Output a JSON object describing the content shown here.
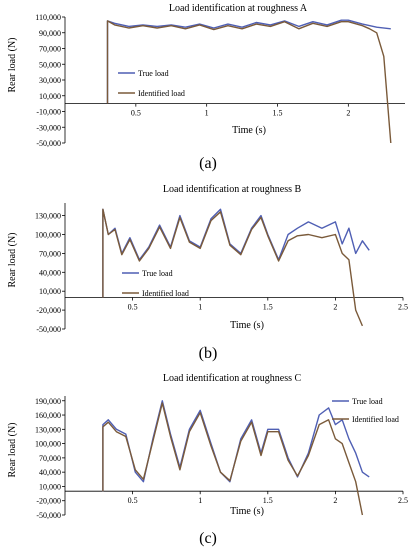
{
  "chart_data": [
    {
      "type": "line",
      "title": "Load identification at roughness A",
      "xlabel": "Time (s)",
      "ylabel": "Rear load (N)",
      "panel_label": "(a)",
      "xlim": [
        0,
        2.4
      ],
      "ylim": [
        -50000,
        110000
      ],
      "y_at_x_axis": 0,
      "xticks": [
        0.5,
        1,
        1.5,
        2
      ],
      "xtick_labels": [
        "0.5",
        "1",
        "1.5",
        "2"
      ],
      "yticks": [
        110000,
        90000,
        70000,
        50000,
        30000,
        10000,
        -10000,
        -30000,
        -50000
      ],
      "ytick_labels": [
        "110,000",
        "90,000",
        "70,000",
        "50,000",
        "30,000",
        "10,000",
        "-10,000",
        "-30,000",
        "-50,000"
      ],
      "grid": false,
      "legend_position": "left-center",
      "series": [
        {
          "name": "True load",
          "color": "#4f5fb4",
          "x": [
            0.3,
            0.3,
            0.35,
            0.45,
            0.55,
            0.65,
            0.75,
            0.85,
            0.95,
            1.05,
            1.15,
            1.25,
            1.35,
            1.45,
            1.55,
            1.65,
            1.75,
            1.85,
            1.95,
            2.0,
            2.1,
            2.2,
            2.3
          ],
          "y": [
            0,
            105000,
            102000,
            98000,
            100000,
            98000,
            100000,
            97000,
            101000,
            96000,
            101000,
            97000,
            103000,
            100000,
            105000,
            98000,
            104000,
            100000,
            106000,
            106000,
            101000,
            97000,
            95000
          ]
        },
        {
          "name": "Identified load",
          "color": "#7a5a3a",
          "x": [
            0.3,
            0.3,
            0.35,
            0.45,
            0.55,
            0.65,
            0.75,
            0.85,
            0.95,
            1.05,
            1.15,
            1.25,
            1.35,
            1.45,
            1.55,
            1.65,
            1.75,
            1.85,
            1.95,
            2.0,
            2.1,
            2.15,
            2.2,
            2.25,
            2.3
          ],
          "y": [
            0,
            105000,
            100000,
            96000,
            99000,
            96000,
            99000,
            95000,
            100000,
            94000,
            99000,
            95000,
            101000,
            98000,
            104000,
            95000,
            102000,
            98000,
            104000,
            104000,
            99000,
            95000,
            90000,
            60000,
            -50000
          ]
        }
      ]
    },
    {
      "type": "line",
      "title": "Load identification at roughness B",
      "xlabel": "Time (s)",
      "ylabel": "Rear load (N)",
      "panel_label": "(b)",
      "xlim": [
        0,
        2.5
      ],
      "ylim": [
        -50000,
        150000
      ],
      "y_at_x_axis": 0,
      "xticks": [
        0.5,
        1,
        1.5,
        2,
        2.5
      ],
      "xtick_labels": [
        "0.5",
        "1",
        "1.5",
        "2",
        "2.5"
      ],
      "yticks": [
        130000,
        100000,
        70000,
        40000,
        10000,
        -20000,
        -50000
      ],
      "ytick_labels": [
        "130,000",
        "100,000",
        "70,000",
        "40,000",
        "10,000",
        "-20,000",
        "-50,000"
      ],
      "grid": false,
      "legend_position": "left-bottom",
      "series": [
        {
          "name": "True load",
          "color": "#4f5fb4",
          "x": [
            0.28,
            0.28,
            0.32,
            0.37,
            0.42,
            0.48,
            0.55,
            0.62,
            0.7,
            0.78,
            0.85,
            0.92,
            1.0,
            1.08,
            1.15,
            1.22,
            1.3,
            1.38,
            1.45,
            1.5,
            1.58,
            1.65,
            1.72,
            1.8,
            1.9,
            2.0,
            2.05,
            2.1,
            2.15,
            2.2,
            2.25
          ],
          "y": [
            0,
            140000,
            100000,
            110000,
            70000,
            95000,
            60000,
            80000,
            115000,
            80000,
            130000,
            90000,
            80000,
            125000,
            140000,
            85000,
            70000,
            110000,
            130000,
            100000,
            60000,
            100000,
            110000,
            120000,
            110000,
            120000,
            85000,
            110000,
            70000,
            90000,
            75000
          ]
        },
        {
          "name": "Identified load",
          "color": "#7a5a3a",
          "x": [
            0.28,
            0.28,
            0.32,
            0.37,
            0.42,
            0.48,
            0.55,
            0.62,
            0.7,
            0.78,
            0.85,
            0.92,
            1.0,
            1.08,
            1.15,
            1.22,
            1.3,
            1.38,
            1.45,
            1.5,
            1.58,
            1.65,
            1.72,
            1.8,
            1.9,
            2.0,
            2.05,
            2.1,
            2.15,
            2.2
          ],
          "y": [
            0,
            140000,
            100000,
            108000,
            68000,
            92000,
            58000,
            78000,
            112000,
            78000,
            127000,
            88000,
            78000,
            122000,
            136000,
            83000,
            68000,
            108000,
            127000,
            98000,
            58000,
            90000,
            98000,
            100000,
            95000,
            100000,
            70000,
            60000,
            -20000,
            -45000
          ]
        }
      ]
    },
    {
      "type": "line",
      "title": "Load identification at roughness C",
      "xlabel": "Time (s)",
      "ylabel": "Rear load (N)",
      "panel_label": "(c)",
      "xlim": [
        0,
        2.5
      ],
      "ylim": [
        -50000,
        200000
      ],
      "y_at_x_axis": 0,
      "xticks": [
        0.5,
        1,
        1.5,
        2,
        2.5
      ],
      "xtick_labels": [
        "0.5",
        "1",
        "1.5",
        "2",
        "2.5"
      ],
      "yticks": [
        190000,
        160000,
        130000,
        100000,
        70000,
        40000,
        10000,
        -20000,
        -50000
      ],
      "ytick_labels": [
        "190,000",
        "160,000",
        "130,000",
        "100,000",
        "70,000",
        "40,000",
        "10,000",
        "-20,000",
        "-50,000"
      ],
      "grid": false,
      "legend_position": "top-right",
      "series": [
        {
          "name": "True load",
          "color": "#4f5fb4",
          "x": [
            0.28,
            0.28,
            0.32,
            0.38,
            0.45,
            0.52,
            0.58,
            0.65,
            0.72,
            0.78,
            0.85,
            0.92,
            1.0,
            1.08,
            1.15,
            1.22,
            1.3,
            1.38,
            1.45,
            1.5,
            1.58,
            1.65,
            1.72,
            1.8,
            1.88,
            1.95,
            2.0,
            2.05,
            2.1,
            2.15,
            2.2,
            2.25
          ],
          "y": [
            0,
            140000,
            150000,
            130000,
            120000,
            40000,
            20000,
            110000,
            190000,
            120000,
            50000,
            130000,
            170000,
            100000,
            40000,
            20000,
            110000,
            150000,
            80000,
            130000,
            130000,
            70000,
            30000,
            80000,
            160000,
            175000,
            140000,
            150000,
            110000,
            80000,
            40000,
            30000
          ]
        },
        {
          "name": "Identified load",
          "color": "#7a5a3a",
          "x": [
            0.28,
            0.28,
            0.32,
            0.38,
            0.45,
            0.52,
            0.58,
            0.65,
            0.72,
            0.78,
            0.85,
            0.92,
            1.0,
            1.08,
            1.15,
            1.22,
            1.3,
            1.38,
            1.45,
            1.5,
            1.58,
            1.65,
            1.72,
            1.8,
            1.88,
            1.95,
            2.0,
            2.05,
            2.1,
            2.15,
            2.2
          ],
          "y": [
            0,
            135000,
            145000,
            125000,
            115000,
            45000,
            25000,
            105000,
            185000,
            115000,
            45000,
            125000,
            165000,
            95000,
            40000,
            22000,
            105000,
            145000,
            75000,
            125000,
            125000,
            65000,
            32000,
            75000,
            140000,
            150000,
            110000,
            100000,
            60000,
            20000,
            -50000
          ]
        }
      ]
    }
  ]
}
